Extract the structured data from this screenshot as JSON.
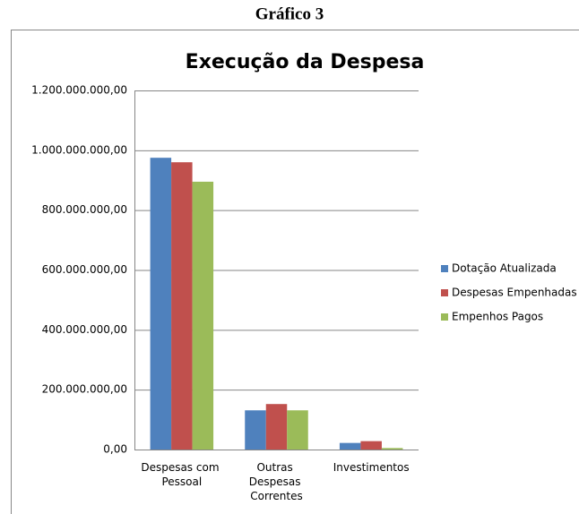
{
  "heading": "Gráfico 3",
  "chart_data": {
    "type": "bar",
    "title": "Execução da Despesa",
    "categories": [
      "Despesas com Pessoal",
      "Outras Despesas Correntes",
      "Investimentos"
    ],
    "series": [
      {
        "name": "Dotação Atualizada",
        "color": "#4f81bd",
        "values": [
          975000000,
          131000000,
          22000000
        ]
      },
      {
        "name": "Despesas Empenhadas",
        "color": "#c0504d",
        "values": [
          960000000,
          152000000,
          28000000
        ]
      },
      {
        "name": "Empenhos Pagos",
        "color": "#9bbb59",
        "values": [
          895000000,
          131000000,
          5000000
        ]
      }
    ],
    "ylim": [
      0,
      1200000000
    ],
    "yticks": [
      {
        "value": 0,
        "label": "0,00"
      },
      {
        "value": 200000000,
        "label": "200.000.000,00"
      },
      {
        "value": 400000000,
        "label": "400.000.000,00"
      },
      {
        "value": 600000000,
        "label": "600.000.000,00"
      },
      {
        "value": 800000000,
        "label": "800.000.000,00"
      },
      {
        "value": 1000000000,
        "label": "1.000.000.000,00"
      },
      {
        "value": 1200000000,
        "label": "1.200.000.000,00"
      }
    ],
    "grid": true,
    "legend": "right"
  }
}
